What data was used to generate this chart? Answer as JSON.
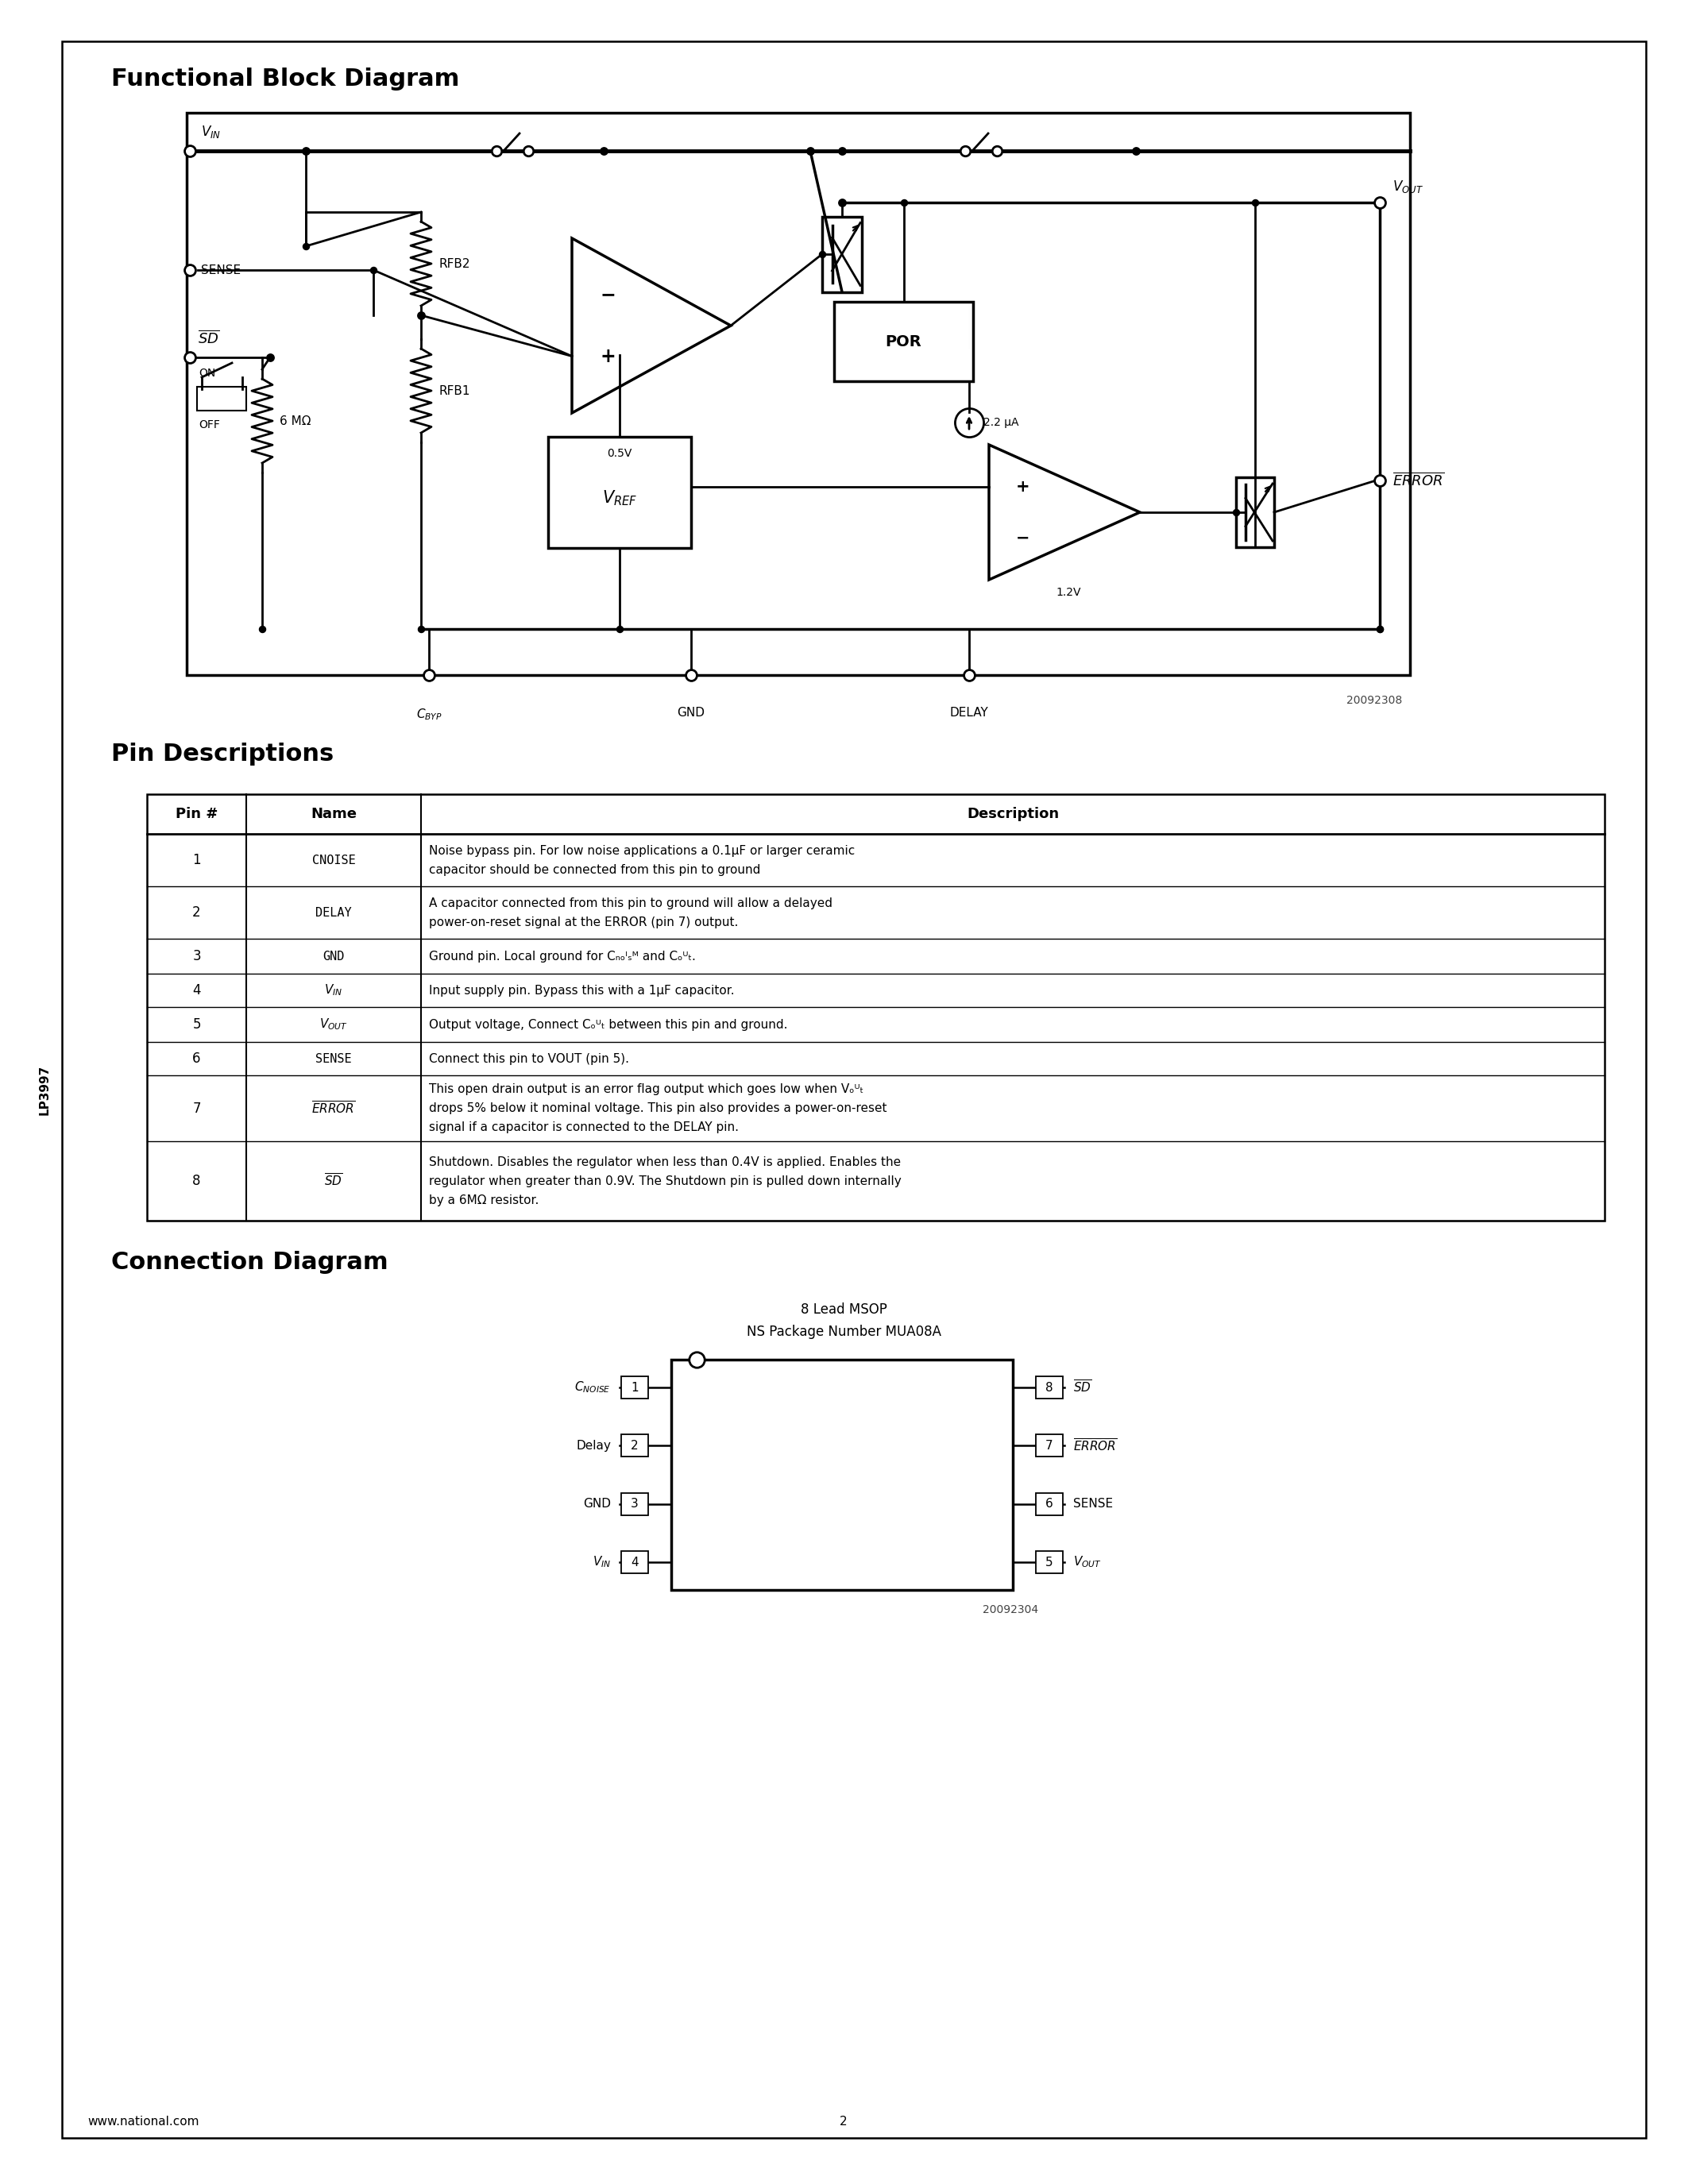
{
  "bg": "#ffffff",
  "lp_label": "LP3997",
  "title_functional": "Functional Block Diagram",
  "title_pin": "Pin Descriptions",
  "title_connection": "Connection Diagram",
  "footer_left": "www.national.com",
  "footer_center": "2",
  "diag_code": "20092308",
  "conn_code": "20092304",
  "table_headers": [
    "Pin #",
    "Name",
    "Description"
  ],
  "pin_rows": [
    {
      "num": "1",
      "name": "CNOISE",
      "lines": [
        "Noise bypass pin. For low noise applications a 0.1μF or larger ceramic",
        "capacitor should be connected from this pin to ground"
      ]
    },
    {
      "num": "2",
      "name": "DELAY",
      "lines": [
        "A capacitor connected from this pin to ground will allow a delayed",
        "power-on-reset signal at the ERROR (pin 7) output."
      ]
    },
    {
      "num": "3",
      "name": "GND",
      "lines": [
        "Ground pin. Local ground for Cₙₒᴵₛᴹ and Cₒᵁₜ."
      ]
    },
    {
      "num": "4",
      "name": "VIN",
      "lines": [
        "Input supply pin. Bypass this with a 1μF capacitor."
      ]
    },
    {
      "num": "5",
      "name": "VOUT",
      "lines": [
        "Output voltage, Connect Cₒᵁₜ between this pin and ground."
      ]
    },
    {
      "num": "6",
      "name": "SENSE",
      "lines": [
        "Connect this pin to VOUT (pin 5)."
      ]
    },
    {
      "num": "7",
      "name": "ERROR",
      "lines": [
        "This open drain output is an error flag output which goes low when Vₒᵁₜ",
        "drops 5% below it nominal voltage. This pin also provides a power-on-reset",
        "signal if a capacitor is connected to the DELAY pin."
      ]
    },
    {
      "num": "8",
      "name": "SD",
      "lines": [
        "Shutdown. Disables the regulator when less than 0.4V is applied. Enables the",
        "regulator when greater than 0.9V. The Shutdown pin is pulled down internally",
        "by a 6MΩ resistor."
      ]
    }
  ],
  "conn_title1": "8 Lead MSOP",
  "conn_title2": "NS Package Number MUA08A",
  "conn_left": [
    [
      "Cₙₒᴵₛᴹ",
      "1"
    ],
    [
      "Delay",
      "2"
    ],
    [
      "GND",
      "3"
    ],
    [
      "Vᴵₙ",
      "4"
    ]
  ],
  "conn_right": [
    [
      "SD",
      "8"
    ],
    [
      "ERROR",
      "7"
    ],
    [
      "SENSE",
      "6"
    ],
    [
      "Vₒᵁₜ",
      "5"
    ]
  ]
}
